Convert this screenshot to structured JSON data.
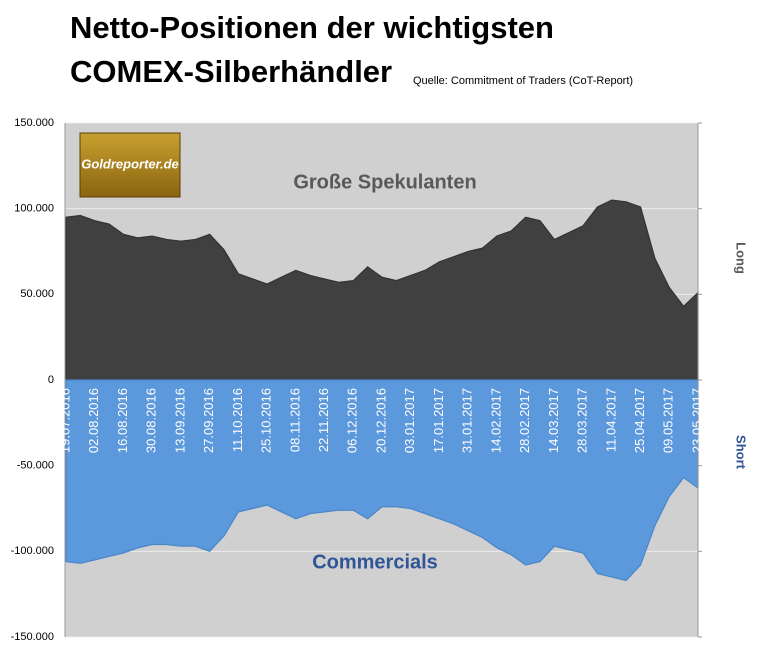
{
  "chart_data": {
    "type": "area",
    "title": [
      "Netto-Positionen der wichtigsten",
      "COMEX-Silberhändler"
    ],
    "source": "Quelle: Commitment of Traders (CoT-Report)",
    "logo": "Goldreporter.de",
    "annotations": [
      "Große Spekulanten",
      "Commercials"
    ],
    "side_labels": [
      "Long",
      "Short"
    ],
    "categories": [
      "19.07.2016",
      null,
      "02.08.2016",
      null,
      "16.08.2016",
      null,
      "30.08.2016",
      null,
      "13.09.2016",
      null,
      "27.09.2016",
      null,
      "11.10.2016",
      null,
      "25.10.2016",
      null,
      "08.11.2016",
      null,
      "22.11.2016",
      null,
      "06.12.2016",
      null,
      "20.12.2016",
      null,
      "03.01.2017",
      null,
      "17.01.2017",
      null,
      "31.01.2017",
      null,
      "14.02.2017",
      null,
      "28.02.2017",
      null,
      "14.03.2017",
      null,
      "28.03.2017",
      null,
      "11.04.2017",
      null,
      "25.04.2017",
      null,
      "09.05.2017",
      null,
      "23.05.2017"
    ],
    "series": [
      {
        "name": "Große Spekulanten",
        "color": "#404040",
        "values": [
          95000,
          96000,
          93000,
          91000,
          85000,
          83000,
          84000,
          82000,
          81000,
          82000,
          85000,
          76000,
          62000,
          59000,
          56000,
          60000,
          64000,
          61000,
          59000,
          57000,
          58000,
          66000,
          60000,
          58000,
          61000,
          64000,
          69000,
          72000,
          75000,
          77000,
          84000,
          87000,
          95000,
          93000,
          82000,
          86000,
          90000,
          101000,
          105000,
          104000,
          101000,
          71000,
          54000,
          43000,
          51000
        ]
      },
      {
        "name": "Commercials",
        "color": "#5b98dc",
        "values": [
          -106000,
          -107000,
          -105000,
          -103000,
          -101000,
          -98000,
          -96000,
          -96000,
          -97000,
          -97000,
          -100000,
          -91000,
          -77000,
          -75000,
          -73000,
          -77000,
          -81000,
          -78000,
          -77000,
          -76000,
          -76000,
          -81000,
          -74000,
          -74000,
          -75000,
          -78000,
          -81000,
          -84000,
          -88000,
          -92000,
          -98000,
          -102000,
          -108000,
          -106000,
          -97000,
          -99000,
          -101000,
          -113000,
          -115000,
          -117000,
          -108000,
          -85000,
          -68000,
          -57000,
          -63000
        ]
      }
    ],
    "ylim": [
      -150000,
      150000
    ],
    "yticks": [
      {
        "value": 150000,
        "label": "150.000"
      },
      {
        "value": 100000,
        "label": "100.000"
      },
      {
        "value": 50000,
        "label": "50.000"
      },
      0,
      {
        "value": -50000,
        "label": "-50.000"
      },
      {
        "value": -100000,
        "label": "-100.000"
      },
      {
        "value": -150000,
        "label": "-150.000"
      }
    ],
    "grid": true,
    "background": "#d0d0d0"
  }
}
